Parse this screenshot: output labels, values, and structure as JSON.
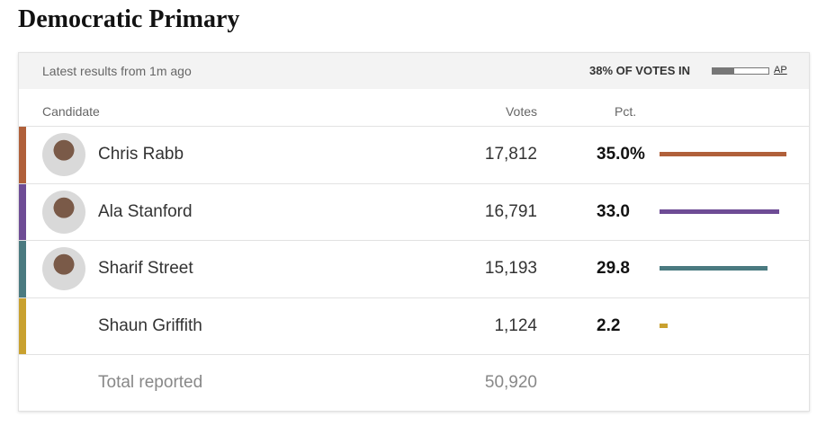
{
  "header": {
    "title": "Democratic Primary",
    "updated": "Latest results from 1m ago",
    "votes_in": {
      "label": "38% OF VOTES IN",
      "value": 38
    },
    "source": "AP"
  },
  "table": {
    "columns": [
      "Candidate",
      "Votes",
      "Pct."
    ],
    "rows": [
      {
        "name": "Chris Rabb",
        "votes": "17,812",
        "pct": 35,
        "pct_label": "35.0%",
        "color": "#b0603a",
        "photo": true
      },
      {
        "name": "Ala Stanford",
        "votes": "16,791",
        "pct": 33,
        "pct_label": "33.0",
        "color": "#6e4c95",
        "photo": true
      },
      {
        "name": "Sharif Street",
        "votes": "15,193",
        "pct": 29.8,
        "pct_label": "29.8",
        "color": "#4a7a80",
        "photo": true
      },
      {
        "name": "Shaun Griffith",
        "votes": "1,124",
        "pct": 2.2,
        "pct_label": "2.2",
        "color": "#c9a12f",
        "photo": false
      }
    ],
    "total": {
      "label": "Total reported",
      "votes": "50,920"
    }
  }
}
